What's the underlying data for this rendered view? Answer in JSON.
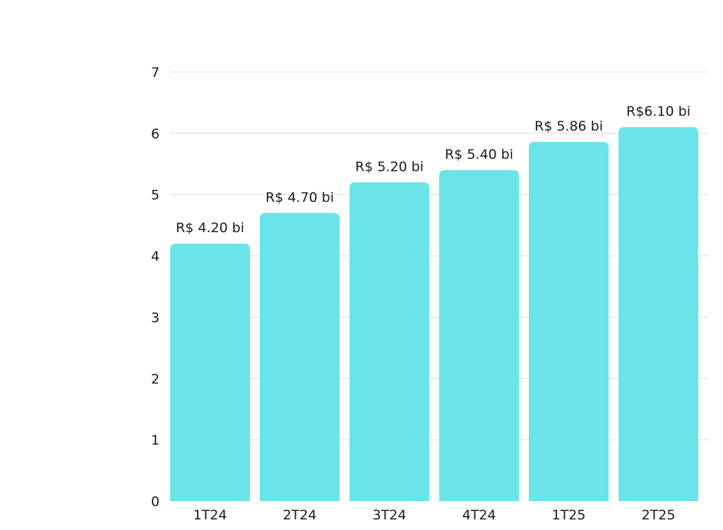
{
  "chart_data": {
    "type": "bar",
    "title": "",
    "xlabel": "",
    "ylabel": "",
    "categories": [
      "1T24",
      "2T24",
      "3T24",
      "4T24",
      "1T25",
      "2T25"
    ],
    "values": [
      4.2,
      4.7,
      5.2,
      5.4,
      5.86,
      6.1
    ],
    "data_labels": [
      "R$ 4.20 bi",
      "R$ 4.70 bi",
      "R$ 5.20 bi",
      "R$ 5.40 bi",
      "R$ 5.86 bi",
      "R$6.10 bi"
    ],
    "ylim": [
      0,
      7
    ],
    "yticks": [
      "0",
      "1",
      "2",
      "3",
      "4",
      "5",
      "6",
      "7"
    ],
    "grid": true,
    "legend": "none",
    "bar_color": "#6ae4e8",
    "grid_color": "#d9d9d9",
    "text_color": "#1a1a1a"
  }
}
